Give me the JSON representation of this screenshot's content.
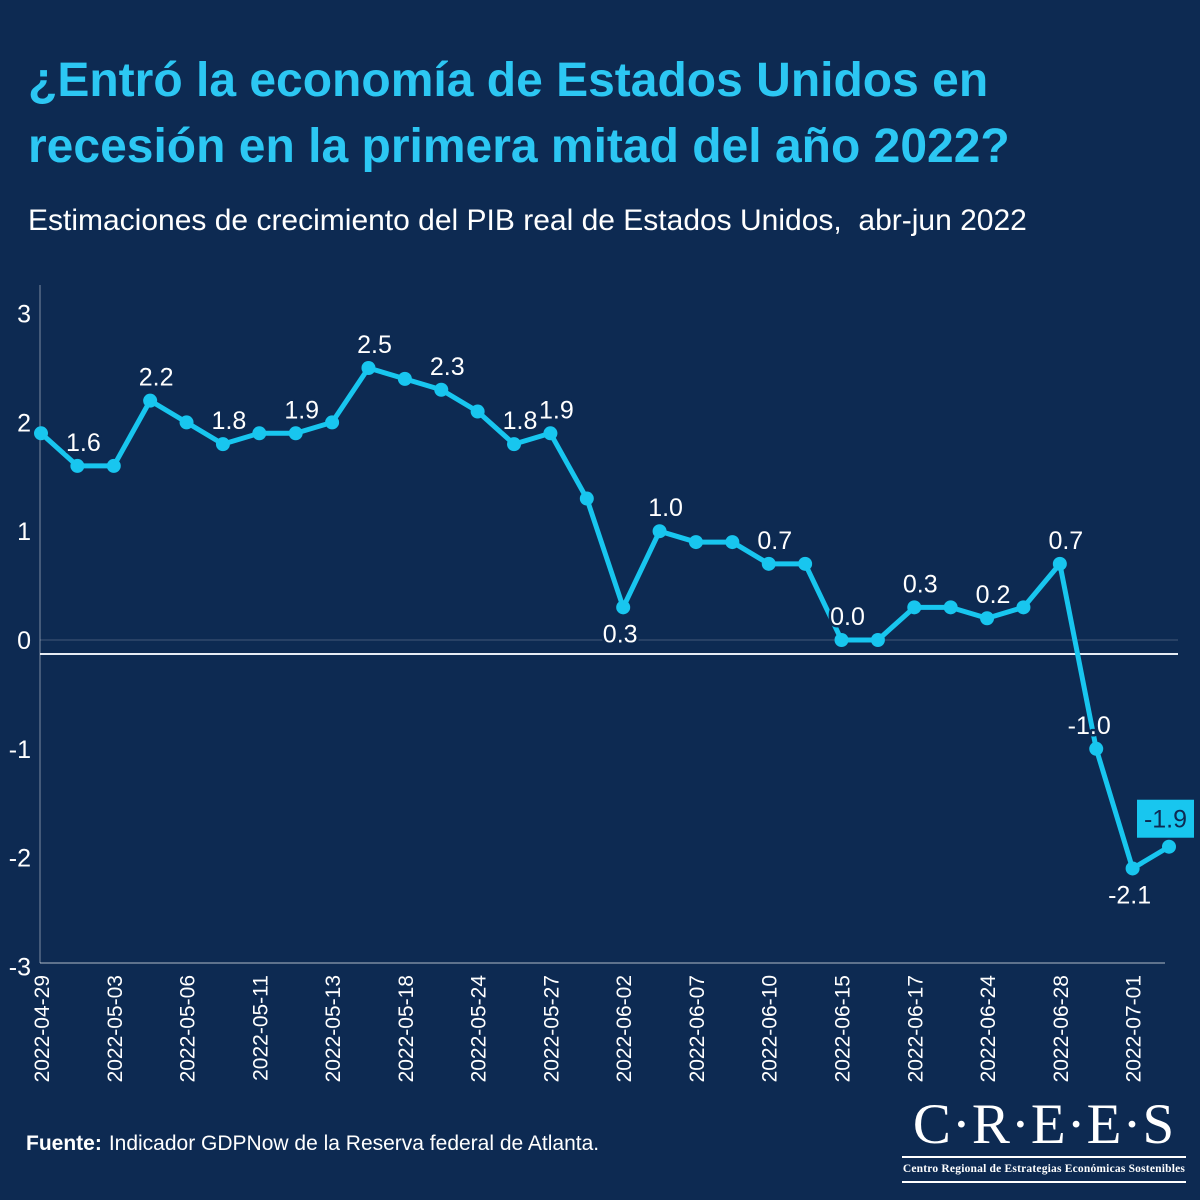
{
  "header": {
    "title_lines": [
      "¿Entró la economía de Estados Unidos en",
      "recesión en la primera mitad del año 2022?"
    ],
    "subtitle": "Estimaciones de crecimiento del PIB real de Estados Unidos,  abr-jun 2022"
  },
  "colors": {
    "background": "#0d2a52",
    "title": "#2cc7f3",
    "line": "#18c6ef",
    "point": "#18c6ef",
    "label_text": "#ffffff",
    "label_box_bg": "#18c6ef",
    "label_box_text": "#0d2a52",
    "axis": "rgba(255,255,255,0.45)",
    "zero_gridline": "rgba(255,255,255,0.22)",
    "zero_baseline": "#e6ecf4",
    "tick_text": "#ffffff"
  },
  "chart_data": {
    "type": "line",
    "title": "¿Entró la economía de Estados Unidos en recesión en la primera mitad del año 2022?",
    "subtitle": "Estimaciones de crecimiento del PIB real de Estados Unidos, abr-jun 2022",
    "xlabel": "",
    "ylabel": "",
    "ylim": [
      -3,
      3
    ],
    "yticks": [
      3,
      2,
      1,
      0,
      -1,
      -2,
      -3
    ],
    "grid": "zero-line-only",
    "legend": "none",
    "x_tick_every": 2,
    "x_tick_labels": [
      "2022-04-29",
      "2022-05-03",
      "2022-05-06",
      "2022-05-11",
      "2022-05-13",
      "2022-05-18",
      "2022-05-24",
      "2022-05-27",
      "2022-06-02",
      "2022-06-07",
      "2022-06-10",
      "2022-06-15",
      "2022-06-17",
      "2022-06-24",
      "2022-06-28",
      "2022-07-01"
    ],
    "series": [
      {
        "name": "Indicador GDPNow",
        "points": [
          {
            "value": 1.9
          },
          {
            "value": 1.6,
            "label": "1.6",
            "label_pos": "above"
          },
          {
            "value": 1.6
          },
          {
            "value": 2.2,
            "label": "2.2",
            "label_pos": "above"
          },
          {
            "value": 2.0
          },
          {
            "value": 1.8,
            "label": "1.8",
            "label_pos": "above"
          },
          {
            "value": 1.9
          },
          {
            "value": 1.9,
            "label": "1.9",
            "label_pos": "above"
          },
          {
            "value": 2.0
          },
          {
            "value": 2.5,
            "label": "2.5",
            "label_pos": "above"
          },
          {
            "value": 2.4
          },
          {
            "value": 2.3,
            "label": "2.3",
            "label_pos": "above"
          },
          {
            "value": 2.1
          },
          {
            "value": 1.8,
            "label": "1.8",
            "label_pos": "above"
          },
          {
            "value": 1.9,
            "label": "1.9",
            "label_pos": "above"
          },
          {
            "value": 1.3
          },
          {
            "value": 0.3,
            "label": "0.3",
            "label_pos": "below"
          },
          {
            "value": 1.0,
            "label": "1.0",
            "label_pos": "above"
          },
          {
            "value": 0.9
          },
          {
            "value": 0.9
          },
          {
            "value": 0.7,
            "label": "0.7",
            "label_pos": "above"
          },
          {
            "value": 0.7
          },
          {
            "value": 0.0,
            "label": "0.0",
            "label_pos": "above"
          },
          {
            "value": 0.0
          },
          {
            "value": 0.3,
            "label": "0.3",
            "label_pos": "above"
          },
          {
            "value": 0.3
          },
          {
            "value": 0.2,
            "label": "0.2",
            "label_pos": "above"
          },
          {
            "value": 0.3
          },
          {
            "value": 0.7,
            "label": "0.7",
            "label_pos": "above"
          },
          {
            "value": -1.0,
            "label": "-1.0",
            "label_pos": "above"
          },
          {
            "value": -2.1,
            "label": "-2.1",
            "label_pos": "below"
          },
          {
            "value": -1.9,
            "label": "-1.9",
            "label_pos": "box"
          }
        ]
      }
    ]
  },
  "footer": {
    "source_label": "Fuente:",
    "source_text": "Indicador GDPNow de la Reserva federal de Atlanta."
  },
  "logo": {
    "wordmark": "C·R·E·E·S",
    "tagline": "Centro Regional de Estrategias Económicas Sostenibles"
  }
}
